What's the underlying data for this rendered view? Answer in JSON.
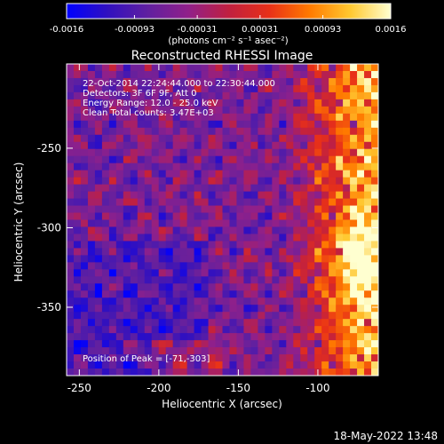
{
  "chart_data": {
    "type": "heatmap",
    "title": "Reconstructed RHESSI Image",
    "xlabel": "Heliocentric X (arcsec)",
    "ylabel": "Heliocentric Y (arcsec)",
    "xlim": [
      -258,
      -62
    ],
    "ylim": [
      -393,
      -197
    ],
    "x_ticks": [
      "-250",
      "-200",
      "-150",
      "-100"
    ],
    "y_ticks": [
      "-250",
      "-300",
      "-350"
    ],
    "x_tick_values": [
      -250,
      -200,
      -150,
      -100
    ],
    "y_tick_values": [
      -250,
      -300,
      -350
    ],
    "colorbar": {
      "ticks": [
        "-0.0016",
        "-0.00093",
        "-0.00031",
        "0.00031",
        "0.00093",
        "0.0016"
      ],
      "tick_values": [
        -0.0016,
        -0.00093,
        -0.00031,
        0.00031,
        0.00093,
        0.0016
      ],
      "range": [
        -0.0016,
        0.0016
      ],
      "units": "(photons cm⁻² s⁻¹ asec⁻²)",
      "colormap": [
        "#0000ff",
        "#3010c0",
        "#6020a0",
        "#90208a",
        "#c02040",
        "#e83018",
        "#ff7a00",
        "#ffc830",
        "#ffffd0"
      ]
    },
    "annotations": [
      "22-Oct-2014 22:24:44.000 to 22:30:44.000",
      "Detectors: 3F 6F 9F, Att 0",
      "Energy Range: 12.0 - 25.0 keV",
      "Clean    Total counts: 3.47E+03"
    ],
    "peak_label": "Position of Peak = [-71,-303]",
    "peak": [
      -71,
      -303
    ],
    "grid": false
  },
  "footer_timestamp": "18-May-2022 13:48"
}
